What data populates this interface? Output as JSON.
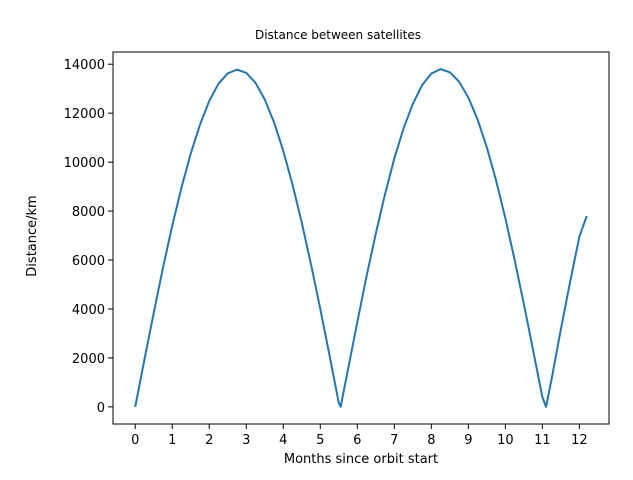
{
  "chart_data": {
    "type": "line",
    "title": "Distance between satellites",
    "xlabel": "Months since orbit start",
    "ylabel": "Distance/km",
    "xlim": [
      -0.6,
      12.8
    ],
    "ylim": [
      -700,
      14500
    ],
    "xticks": [
      0,
      1,
      2,
      3,
      4,
      5,
      6,
      7,
      8,
      9,
      10,
      11,
      12
    ],
    "yticks": [
      0,
      2000,
      4000,
      6000,
      8000,
      10000,
      12000,
      14000
    ],
    "grid": false,
    "series": [
      {
        "color": "#1f77b4",
        "x": [
          0,
          0.25,
          0.5,
          0.75,
          1,
          1.25,
          1.5,
          1.75,
          2,
          2.25,
          2.5,
          2.75,
          3,
          3.25,
          3.5,
          3.75,
          4,
          4.25,
          4.5,
          4.75,
          5,
          5.25,
          5.5,
          5.55,
          5.75,
          6,
          6.25,
          6.5,
          6.75,
          7,
          7.25,
          7.5,
          7.75,
          8,
          8.25,
          8.5,
          8.75,
          9,
          9.25,
          9.5,
          9.75,
          10,
          10.25,
          10.5,
          10.75,
          11,
          11.1,
          11.25,
          11.5,
          11.75,
          12,
          12.2
        ],
        "y": [
          0,
          1940,
          3840,
          5680,
          7400,
          8960,
          10350,
          11530,
          12500,
          13200,
          13630,
          13780,
          13650,
          13240,
          12560,
          11630,
          10460,
          9080,
          7530,
          5820,
          4000,
          2100,
          160,
          0,
          1540,
          3460,
          5340,
          7080,
          8700,
          10150,
          11380,
          12380,
          13140,
          13620,
          13800,
          13670,
          13290,
          12640,
          11740,
          10600,
          9250,
          7710,
          6010,
          4200,
          2310,
          400,
          0,
          1140,
          3180,
          5110,
          6960,
          7800
        ]
      }
    ]
  }
}
